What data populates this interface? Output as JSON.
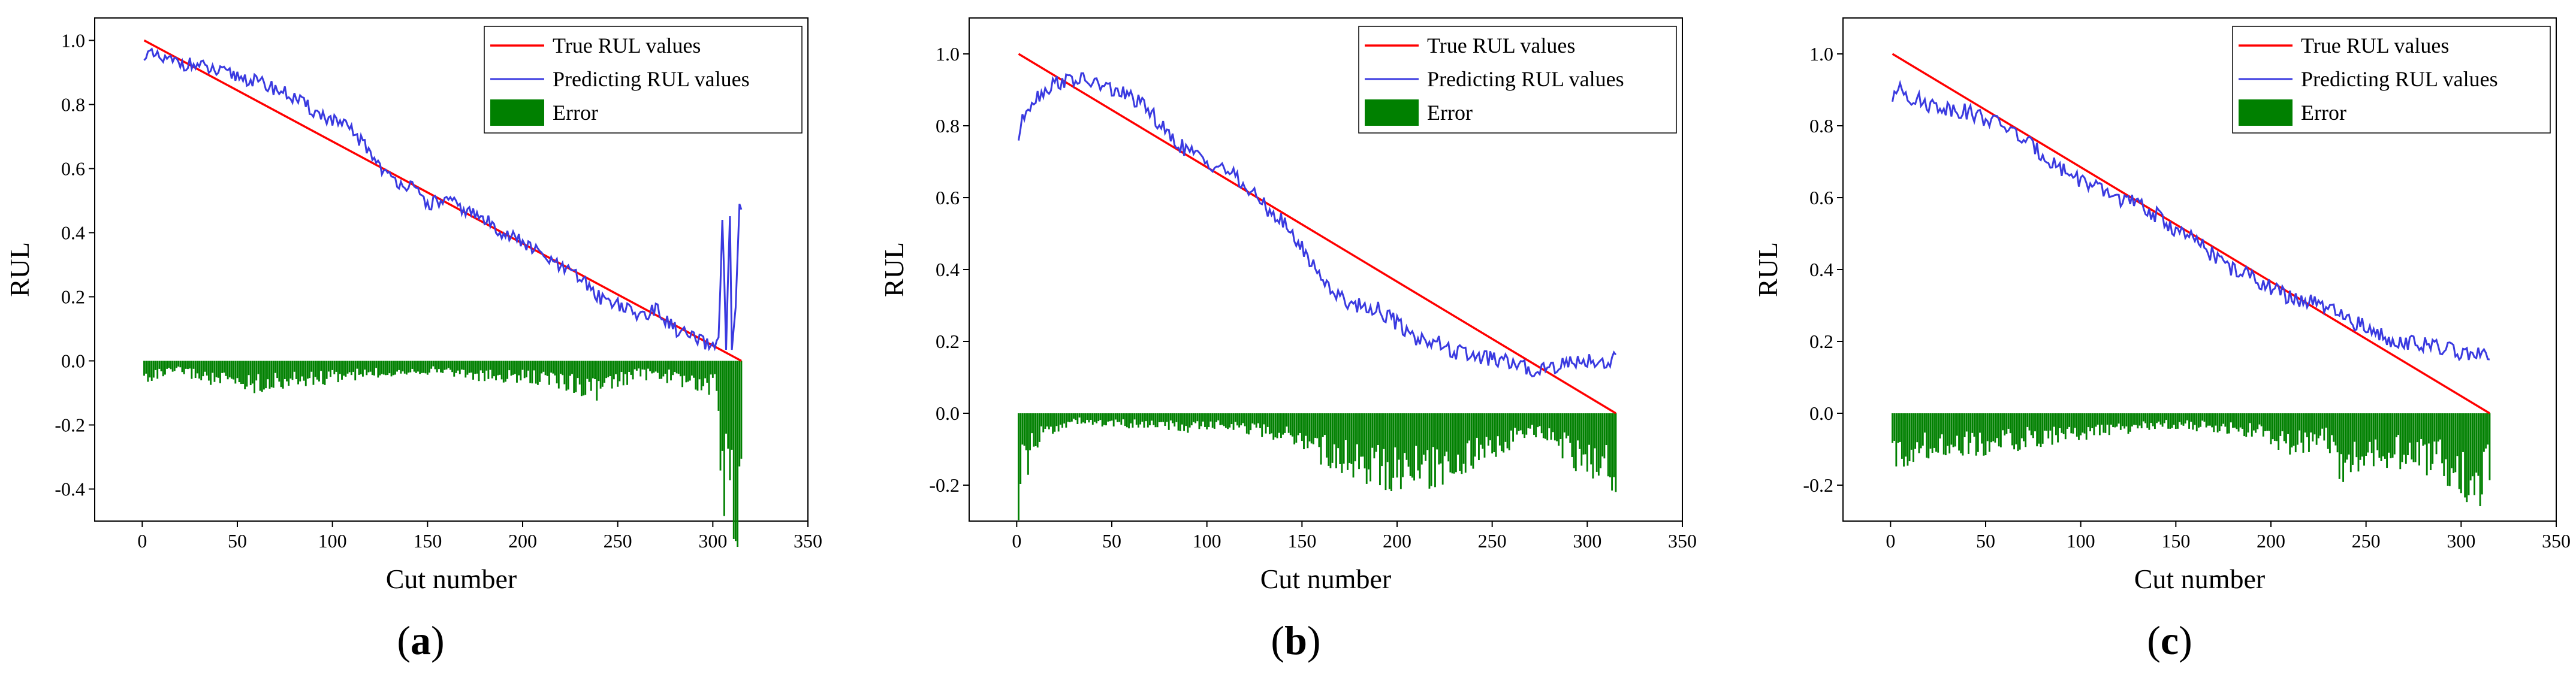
{
  "colors": {
    "true_line": "#ff0000",
    "pred_line": "#3a3ae0",
    "error_bar": "#008000",
    "axis": "#000000"
  },
  "chart_data": [
    {
      "type": "line",
      "panel_label": "a",
      "xlabel": "Cut number",
      "ylabel": "RUL",
      "xlim": [
        -25,
        350
      ],
      "ylim": [
        -0.5,
        1.07
      ],
      "xticks": [
        0,
        50,
        100,
        150,
        200,
        250,
        300,
        350
      ],
      "xtick_labels": [
        "0",
        "50",
        "100",
        "150",
        "200",
        "250",
        "300",
        "350"
      ],
      "yticks": [
        -0.4,
        -0.2,
        0.0,
        0.2,
        0.4,
        0.6,
        0.8,
        1.0
      ],
      "ytick_labels": [
        "-0.4",
        "-0.2",
        "0.0",
        "0.2",
        "0.4",
        "0.6",
        "0.8",
        "1.0"
      ],
      "legend": [
        "True RUL values",
        "Predicting RUL values",
        "Error"
      ],
      "legend_position": "top-right",
      "n_cuts": 315,
      "series": [
        {
          "name": "True RUL values",
          "kind": "line",
          "x": [
            1,
            315
          ],
          "values": [
            1.0,
            0.0
          ]
        },
        {
          "name": "Predicting RUL values",
          "kind": "line",
          "x": [
            1,
            10,
            20,
            30,
            40,
            50,
            60,
            70,
            80,
            90,
            100,
            110,
            120,
            130,
            140,
            150,
            160,
            170,
            180,
            190,
            200,
            210,
            220,
            230,
            240,
            250,
            260,
            270,
            280,
            290,
            300,
            303,
            305,
            307,
            309,
            310,
            312,
            314,
            315
          ],
          "values": [
            0.96,
            0.94,
            0.93,
            0.92,
            0.9,
            0.89,
            0.87,
            0.85,
            0.82,
            0.78,
            0.75,
            0.72,
            0.65,
            0.57,
            0.55,
            0.49,
            0.5,
            0.47,
            0.44,
            0.4,
            0.37,
            0.33,
            0.29,
            0.26,
            0.2,
            0.18,
            0.14,
            0.16,
            0.1,
            0.07,
            0.04,
            0.08,
            0.43,
            0.05,
            0.44,
            0.02,
            0.15,
            0.47,
            0.48
          ]
        },
        {
          "name": "Error",
          "kind": "bar",
          "x": [
            1,
            20,
            40,
            60,
            80,
            100,
            120,
            140,
            160,
            180,
            200,
            220,
            240,
            260,
            280,
            295,
            302,
            305,
            308,
            310,
            313,
            315
          ],
          "values": [
            -0.05,
            -0.03,
            -0.06,
            -0.07,
            -0.06,
            -0.05,
            -0.04,
            -0.03,
            -0.03,
            -0.05,
            -0.05,
            -0.06,
            -0.09,
            -0.04,
            -0.05,
            -0.08,
            -0.07,
            -0.42,
            -0.2,
            -0.44,
            -0.47,
            -0.24
          ]
        }
      ]
    },
    {
      "type": "line",
      "panel_label": "b",
      "xlabel": "Cut number",
      "ylabel": "RUL",
      "xlim": [
        -25,
        350
      ],
      "ylim": [
        -0.3,
        1.1
      ],
      "xticks": [
        0,
        50,
        100,
        150,
        200,
        250,
        300,
        350
      ],
      "xtick_labels": [
        "0",
        "50",
        "100",
        "150",
        "200",
        "250",
        "300",
        "350"
      ],
      "yticks": [
        -0.2,
        0.0,
        0.2,
        0.4,
        0.6,
        0.8,
        1.0
      ],
      "ytick_labels": [
        "-0.2",
        "0.0",
        "0.2",
        "0.4",
        "0.6",
        "0.8",
        "1.0"
      ],
      "legend": [
        "True RUL values",
        "Predicting RUL values",
        "Error"
      ],
      "legend_position": "top-right",
      "n_cuts": 315,
      "series": [
        {
          "name": "True RUL values",
          "kind": "line",
          "x": [
            1,
            315
          ],
          "values": [
            1.0,
            0.0
          ]
        },
        {
          "name": "Predicting RUL values",
          "kind": "line",
          "x": [
            1,
            5,
            10,
            20,
            30,
            40,
            50,
            60,
            70,
            80,
            90,
            100,
            110,
            120,
            130,
            140,
            150,
            160,
            170,
            180,
            190,
            200,
            210,
            220,
            230,
            240,
            250,
            260,
            270,
            280,
            290,
            300,
            310,
            315
          ],
          "values": [
            0.77,
            0.85,
            0.88,
            0.92,
            0.93,
            0.92,
            0.9,
            0.88,
            0.84,
            0.77,
            0.73,
            0.7,
            0.68,
            0.63,
            0.58,
            0.53,
            0.46,
            0.38,
            0.32,
            0.3,
            0.29,
            0.25,
            0.21,
            0.2,
            0.17,
            0.16,
            0.15,
            0.14,
            0.12,
            0.13,
            0.14,
            0.15,
            0.14,
            0.16
          ]
        },
        {
          "name": "Error",
          "kind": "bar",
          "x": [
            1,
            3,
            8,
            15,
            30,
            50,
            70,
            90,
            110,
            130,
            150,
            160,
            170,
            180,
            190,
            200,
            210,
            220,
            230,
            240,
            250,
            260,
            270,
            280,
            290,
            300,
            310,
            315
          ],
          "values": [
            -0.23,
            -0.15,
            -0.1,
            -0.05,
            -0.02,
            -0.03,
            -0.03,
            -0.04,
            -0.03,
            -0.05,
            -0.07,
            -0.1,
            -0.12,
            -0.13,
            -0.15,
            -0.15,
            -0.16,
            -0.15,
            -0.13,
            -0.12,
            -0.1,
            -0.07,
            -0.05,
            -0.06,
            -0.1,
            -0.13,
            -0.14,
            -0.16
          ]
        }
      ]
    },
    {
      "type": "line",
      "panel_label": "c",
      "xlabel": "Cut number",
      "ylabel": "RUL",
      "xlim": [
        -25,
        350
      ],
      "ylim": [
        -0.3,
        1.1
      ],
      "xticks": [
        0,
        50,
        100,
        150,
        200,
        250,
        300,
        350
      ],
      "xtick_labels": [
        "0",
        "50",
        "100",
        "150",
        "200",
        "250",
        "300",
        "350"
      ],
      "yticks": [
        -0.2,
        0.0,
        0.2,
        0.4,
        0.6,
        0.8,
        1.0
      ],
      "ytick_labels": [
        "-0.2",
        "0.0",
        "0.2",
        "0.4",
        "0.6",
        "0.8",
        "1.0"
      ],
      "legend": [
        "True RUL values",
        "Predicting RUL values",
        "Error"
      ],
      "legend_position": "top-right",
      "n_cuts": 315,
      "series": [
        {
          "name": "True RUL values",
          "kind": "line",
          "x": [
            1,
            315
          ],
          "values": [
            1.0,
            0.0
          ]
        },
        {
          "name": "Predicting RUL values",
          "kind": "line",
          "x": [
            1,
            5,
            10,
            20,
            30,
            40,
            50,
            60,
            70,
            80,
            90,
            100,
            110,
            120,
            130,
            140,
            150,
            160,
            170,
            180,
            190,
            200,
            210,
            220,
            230,
            240,
            250,
            260,
            270,
            280,
            290,
            300,
            310,
            315
          ],
          "values": [
            0.86,
            0.92,
            0.88,
            0.86,
            0.85,
            0.84,
            0.82,
            0.8,
            0.76,
            0.72,
            0.68,
            0.65,
            0.62,
            0.6,
            0.58,
            0.55,
            0.51,
            0.48,
            0.44,
            0.4,
            0.38,
            0.35,
            0.32,
            0.31,
            0.29,
            0.26,
            0.24,
            0.21,
            0.2,
            0.19,
            0.18,
            0.17,
            0.16,
            0.15
          ]
        },
        {
          "name": "Error",
          "kind": "bar",
          "x": [
            1,
            10,
            30,
            50,
            70,
            90,
            110,
            130,
            150,
            170,
            190,
            210,
            230,
            238,
            250,
            270,
            290,
            300,
            310,
            315
          ],
          "values": [
            -0.12,
            -0.1,
            -0.08,
            -0.09,
            -0.07,
            -0.06,
            -0.05,
            -0.04,
            -0.03,
            -0.04,
            -0.05,
            -0.08,
            -0.07,
            -0.15,
            -0.1,
            -0.11,
            -0.13,
            -0.17,
            -0.18,
            -0.15
          ]
        }
      ]
    }
  ]
}
